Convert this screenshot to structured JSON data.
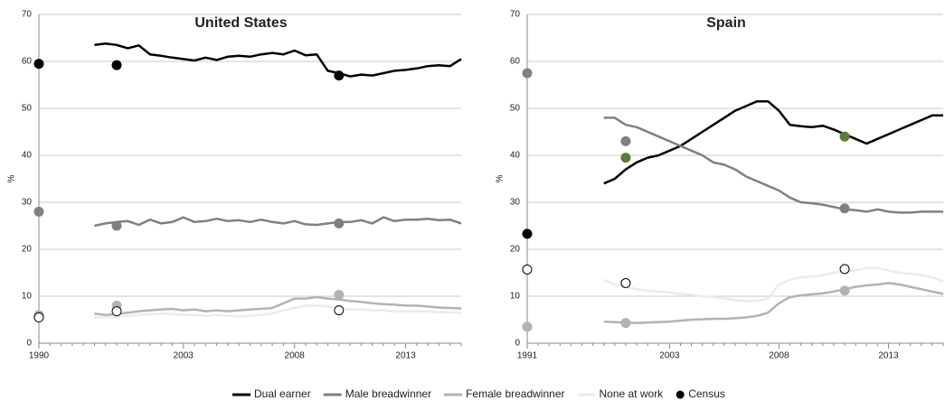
{
  "chart_data": [
    {
      "type": "line",
      "title": "United States",
      "ylabel": "%",
      "categories": [
        "1990",
        null,
        null,
        null,
        null,
        null,
        null,
        null,
        null,
        null,
        null,
        null,
        null,
        "2003",
        null,
        null,
        null,
        null,
        null,
        null,
        null,
        null,
        null,
        "2008",
        null,
        null,
        null,
        null,
        null,
        null,
        null,
        null,
        null,
        "2013",
        null,
        null,
        null,
        null,
        null
      ],
      "ylim": [
        0,
        70
      ],
      "yticks": [
        0,
        10,
        20,
        30,
        40,
        50,
        60,
        70
      ],
      "grid": true,
      "series": [
        {
          "name": "Dual earner",
          "color": "#000000",
          "values": [
            null,
            null,
            null,
            null,
            null,
            63.5,
            63.8,
            63.5,
            62.8,
            63.4,
            61.5,
            61.2,
            60.8,
            60.5,
            60.2,
            60.8,
            60.3,
            61,
            61.2,
            61,
            61.5,
            61.8,
            61.5,
            62.3,
            61.3,
            61.5,
            58,
            57.5,
            56.8,
            57.2,
            57,
            57.5,
            58,
            58.2,
            58.5,
            59,
            59.2,
            59,
            60.5
          ]
        },
        {
          "name": "Male breadwinner",
          "color": "#808080",
          "values": [
            null,
            null,
            null,
            null,
            null,
            25,
            25.5,
            25.8,
            26,
            25.2,
            26.3,
            25.5,
            25.8,
            26.8,
            25.8,
            26,
            26.5,
            26,
            26.2,
            25.8,
            26.3,
            25.8,
            25.5,
            26,
            25.3,
            25.2,
            25.5,
            25.8,
            25.8,
            26.2,
            25.5,
            26.8,
            26,
            26.3,
            26.3,
            26.5,
            26.2,
            26.3,
            25.5
          ]
        },
        {
          "name": "Female breadwinner",
          "color": "#b3b3b3",
          "values": [
            null,
            null,
            null,
            null,
            null,
            6.3,
            6,
            6.2,
            6.5,
            6.8,
            7,
            7.2,
            7.3,
            7,
            7.2,
            6.8,
            7,
            6.8,
            7,
            7.2,
            7.3,
            7.5,
            8.5,
            9.5,
            9.5,
            9.8,
            9.5,
            9.3,
            9,
            8.8,
            8.5,
            8.3,
            8.2,
            8,
            8,
            7.8,
            7.6,
            7.5,
            7.4
          ]
        },
        {
          "name": "None at work",
          "color": "#ebebeb",
          "values": [
            null,
            null,
            null,
            null,
            null,
            5.5,
            5.5,
            5.6,
            5.8,
            6,
            6.2,
            6.3,
            6.2,
            6,
            6,
            5.8,
            6,
            5.8,
            5.7,
            5.8,
            6,
            6.3,
            7,
            7.5,
            8,
            8,
            7.8,
            7.5,
            7.2,
            7.2,
            7,
            7,
            6.8,
            6.8,
            6.8,
            6.8,
            6.6,
            6.6,
            6.5
          ]
        }
      ],
      "census": {
        "name": "Census",
        "color": "#000000",
        "points": [
          {
            "category": 0,
            "value": 59.5,
            "fill": "#000000",
            "stroke": "#000000"
          },
          {
            "category": 0,
            "value": 28,
            "fill": "#808080",
            "stroke": "#808080"
          },
          {
            "category": 0,
            "value": 6,
            "fill": "#b3b3b3",
            "stroke": "#b3b3b3"
          },
          {
            "category": 0,
            "value": 5.5,
            "fill": "#ffffff",
            "stroke": "#000000"
          },
          {
            "category": 7,
            "value": 59.2,
            "fill": "#000000",
            "stroke": "#000000"
          },
          {
            "category": 7,
            "value": 25,
            "fill": "#808080",
            "stroke": "#808080"
          },
          {
            "category": 7,
            "value": 8,
            "fill": "#b3b3b3",
            "stroke": "#b3b3b3"
          },
          {
            "category": 7,
            "value": 6.8,
            "fill": "#ffffff",
            "stroke": "#000000"
          },
          {
            "category": 27,
            "value": 57,
            "fill": "#000000",
            "stroke": "#000000"
          },
          {
            "category": 27,
            "value": 25.5,
            "fill": "#808080",
            "stroke": "#808080"
          },
          {
            "category": 27,
            "value": 10.3,
            "fill": "#b3b3b3",
            "stroke": "#b3b3b3"
          },
          {
            "category": 27,
            "value": 7,
            "fill": "#ffffff",
            "stroke": "#000000"
          }
        ]
      }
    },
    {
      "type": "line",
      "title": "Spain",
      "ylabel": "%",
      "categories": [
        "1991",
        null,
        null,
        null,
        null,
        null,
        null,
        null,
        null,
        null,
        null,
        null,
        null,
        "2003",
        null,
        null,
        null,
        null,
        null,
        null,
        null,
        null,
        null,
        "2008",
        null,
        null,
        null,
        null,
        null,
        null,
        null,
        null,
        null,
        "2013",
        null,
        null,
        null,
        null,
        null
      ],
      "ylim": [
        0,
        70
      ],
      "yticks": [
        0,
        10,
        20,
        30,
        40,
        50,
        60,
        70
      ],
      "grid": true,
      "series": [
        {
          "color": "#000000",
          "values": [
            null,
            null,
            null,
            null,
            null,
            null,
            null,
            34,
            35,
            37,
            38.5,
            39.5,
            40,
            41,
            42,
            43.5,
            45,
            46.5,
            48,
            49.5,
            50.5,
            51.5,
            51.5,
            49.5,
            46.5,
            46.2,
            46,
            46.3,
            45.5,
            44.5,
            43.5,
            42.5,
            43.5,
            44.5,
            45.5,
            46.5,
            47.5,
            48.5,
            48.5
          ]
        },
        {
          "color": "#808080",
          "values": [
            null,
            null,
            null,
            null,
            null,
            null,
            null,
            48,
            48,
            46.5,
            46,
            45,
            44,
            43,
            42,
            41,
            40,
            38.5,
            38,
            37,
            35.5,
            34.5,
            33.5,
            32.5,
            31,
            30,
            29.8,
            29.5,
            29,
            28.5,
            28.3,
            28,
            28.5,
            28,
            27.8,
            27.8,
            28,
            28,
            28
          ]
        },
        {
          "color": "#b3b3b3",
          "values": [
            null,
            null,
            null,
            null,
            null,
            null,
            null,
            4.6,
            4.5,
            4.4,
            4.3,
            4.4,
            4.5,
            4.6,
            4.8,
            5,
            5.1,
            5.2,
            5.2,
            5.3,
            5.5,
            5.8,
            6.5,
            8.5,
            9.8,
            10.2,
            10.4,
            10.6,
            11,
            11.5,
            12,
            12.3,
            12.5,
            12.8,
            12.5,
            12,
            11.5,
            11,
            10.5
          ]
        },
        {
          "color": "#ebebeb",
          "values": [
            null,
            null,
            null,
            null,
            null,
            null,
            null,
            13.5,
            12.5,
            12,
            11.5,
            11.2,
            11,
            10.8,
            10.5,
            10.3,
            10,
            9.8,
            9.5,
            9.2,
            9,
            9,
            9.5,
            12.5,
            13.5,
            14,
            14.2,
            14.5,
            15,
            15.3,
            15.5,
            16,
            16,
            15.5,
            15,
            14.8,
            14.5,
            14,
            13.2
          ]
        }
      ],
      "census": {
        "points": [
          {
            "category": 0,
            "value": 23.3,
            "fill": "#000000",
            "stroke": "#000000"
          },
          {
            "category": 0,
            "value": 57.5,
            "fill": "#808080",
            "stroke": "#808080"
          },
          {
            "category": 0,
            "value": 3.5,
            "fill": "#b3b3b3",
            "stroke": "#b3b3b3"
          },
          {
            "category": 0,
            "value": 15.7,
            "fill": "#ffffff",
            "stroke": "#000000"
          },
          {
            "category": 9,
            "value": 39.5,
            "fill": "#5b7a3c",
            "stroke": "#5b7a3c"
          },
          {
            "category": 9,
            "value": 43,
            "fill": "#808080",
            "stroke": "#808080"
          },
          {
            "category": 9,
            "value": 4.3,
            "fill": "#b3b3b3",
            "stroke": "#b3b3b3"
          },
          {
            "category": 9,
            "value": 12.8,
            "fill": "#ffffff",
            "stroke": "#000000"
          },
          {
            "category": 29,
            "value": 44,
            "fill": "#5b7a3c",
            "stroke": "#5b7a3c"
          },
          {
            "category": 29,
            "value": 28.7,
            "fill": "#808080",
            "stroke": "#808080"
          },
          {
            "category": 29,
            "value": 11.2,
            "fill": "#b3b3b3",
            "stroke": "#b3b3b3"
          },
          {
            "category": 29,
            "value": 15.8,
            "fill": "#ffffff",
            "stroke": "#000000"
          }
        ]
      }
    }
  ]
}
